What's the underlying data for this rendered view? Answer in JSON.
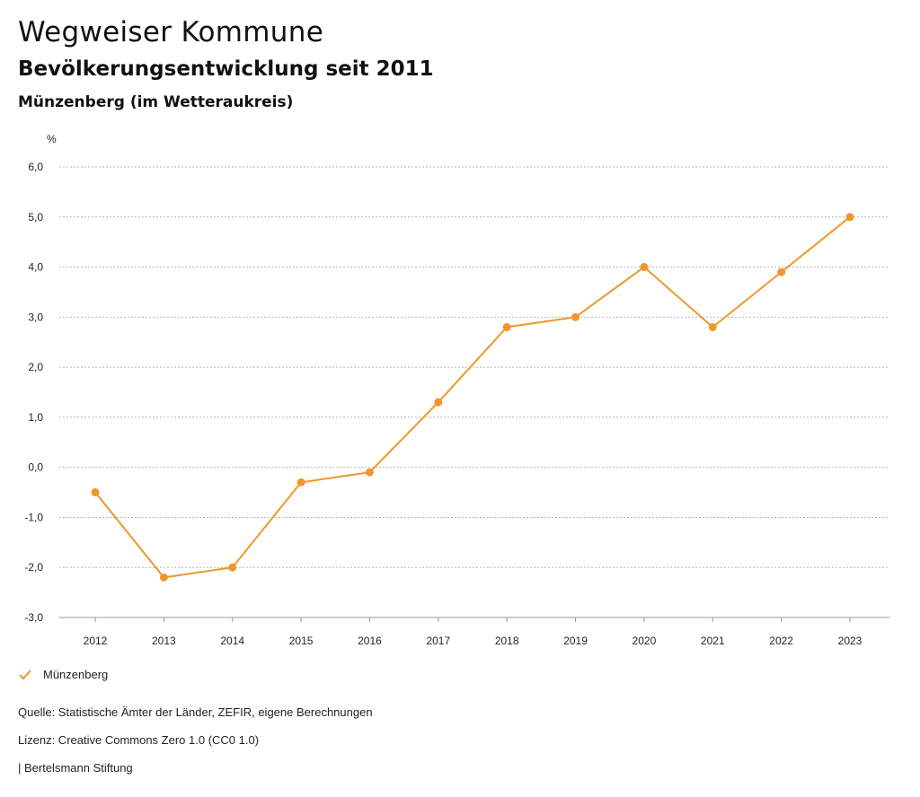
{
  "header": {
    "title": "Wegweiser Kommune",
    "subtitle": "Bevölkerungsentwicklung seit 2011",
    "region": "Münzenberg (im Wetteraukreis)"
  },
  "chart_data": {
    "type": "line",
    "title": "Bevölkerungsentwicklung seit 2011",
    "xlabel": "",
    "ylabel": "%",
    "categories": [
      "2012",
      "2013",
      "2014",
      "2015",
      "2016",
      "2017",
      "2018",
      "2019",
      "2020",
      "2021",
      "2022",
      "2023"
    ],
    "series": [
      {
        "name": "Münzenberg",
        "color": "#f0962c",
        "values": [
          -0.5,
          -2.2,
          -2.0,
          -0.3,
          -0.1,
          1.3,
          2.8,
          3.0,
          4.0,
          2.8,
          3.9,
          5.0
        ]
      }
    ],
    "ylim": [
      -3,
      6
    ],
    "yticks": [
      "-3,0",
      "-2,0",
      "-1,0",
      "0,0",
      "1,0",
      "2,0",
      "3,0",
      "4,0",
      "5,0",
      "6,0"
    ],
    "grid": true,
    "legend": "bottom-left"
  },
  "legend": {
    "label": "Münzenberg"
  },
  "footer": {
    "source": "Quelle: Statistische Ämter der Länder, ZEFIR, eigene Berechnungen",
    "license": "Lizenz: Creative Commons Zero 1.0 (CC0 1.0)",
    "brand": "| Bertelsmann Stiftung"
  }
}
